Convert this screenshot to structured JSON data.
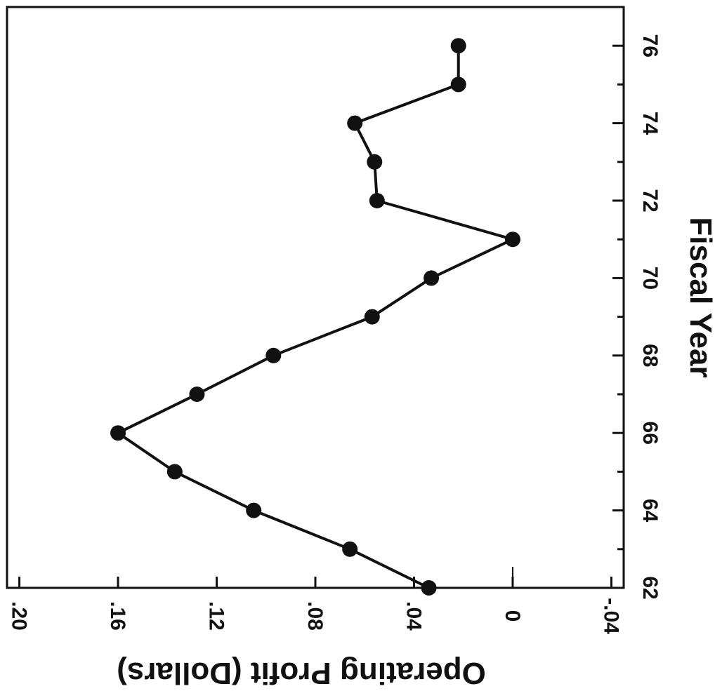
{
  "chart_data": {
    "type": "line",
    "title": "",
    "xlabel": "Fiscal Year",
    "ylabel": "Operating Profit (Dollars)",
    "xlim": [
      62,
      77
    ],
    "ylim": [
      -0.045,
      0.205
    ],
    "x_ticks": [
      62,
      64,
      66,
      68,
      70,
      72,
      74,
      76
    ],
    "x_tick_labels": [
      "62",
      "64",
      "66",
      "68",
      "70",
      "72",
      "74",
      "76"
    ],
    "y_ticks": [
      0.2,
      0.16,
      0.12,
      0.08,
      0.04,
      0,
      -0.04
    ],
    "y_tick_labels": [
      ".20",
      ".16",
      ".12",
      ".08",
      ".04",
      "0",
      "-.04"
    ],
    "grid": false,
    "series": [
      {
        "x": [
          62,
          63,
          64,
          65,
          66,
          67,
          68,
          69,
          70,
          71,
          72,
          73,
          74,
          75,
          76
        ],
        "y": [
          0.034,
          0.066,
          0.105,
          0.137,
          0.16,
          0.128,
          0.097,
          0.057,
          0.033,
          0.0,
          0.055,
          0.056,
          0.064,
          0.022,
          0.022
        ]
      }
    ],
    "colors": {
      "line": "#111111",
      "marker": "#111111",
      "axis": "#111111"
    }
  }
}
